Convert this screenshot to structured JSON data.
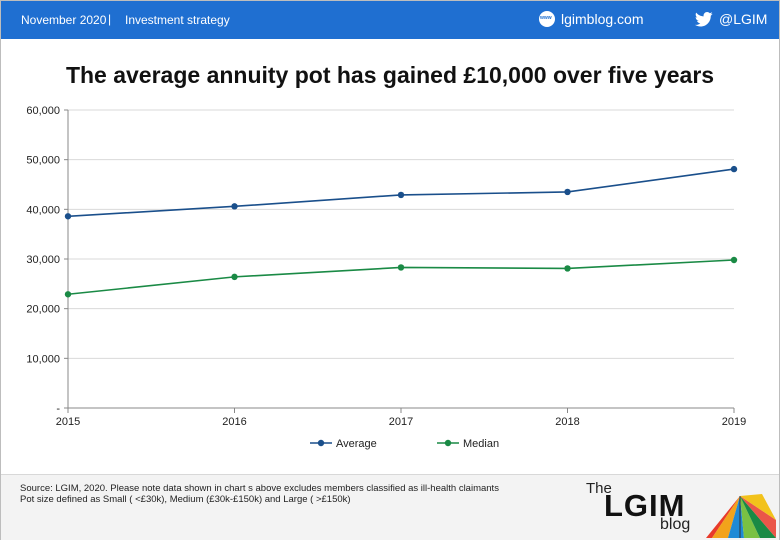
{
  "header": {
    "date": "November 2020",
    "separator": "|",
    "category": "Investment strategy",
    "website": "lgimblog.com",
    "twitter": "@LGIM"
  },
  "title": "The average annuity pot has gained £10,000 over five years",
  "chart_data": {
    "type": "line",
    "title": "The average annuity pot has gained £10,000 over five years",
    "x": [
      2015,
      2016,
      2017,
      2018,
      2019
    ],
    "categories": [
      "2015",
      "2016",
      "2017",
      "2018",
      "2019"
    ],
    "series": [
      {
        "name": "Average",
        "values": [
          38600,
          40600,
          42900,
          43500,
          48100
        ],
        "color": "#1a4f8b"
      },
      {
        "name": "Median",
        "values": [
          22900,
          26400,
          28300,
          28100,
          29800
        ],
        "color": "#1a8a45"
      }
    ],
    "ylim": [
      0,
      60000
    ],
    "yticks": [
      0,
      10000,
      20000,
      30000,
      40000,
      50000,
      60000
    ],
    "ytick_labels": [
      "-",
      "10,000",
      "20,000",
      "30,000",
      "40,000",
      "50,000",
      "60,000"
    ],
    "grid": true,
    "legend_position": "bottom",
    "xlabel": "",
    "ylabel": ""
  },
  "footer": {
    "source_line1": "Source: LGIM, 2020. Please note data shown in chart s above excludes members classified as ill-health claimants",
    "source_line2": "Pot size defined as Small ( <£30k), Medium (£30k-£150k) and Large ( >£150k)",
    "logo_the": "The",
    "logo_lgim": "LGIM",
    "logo_blog": "blog"
  }
}
